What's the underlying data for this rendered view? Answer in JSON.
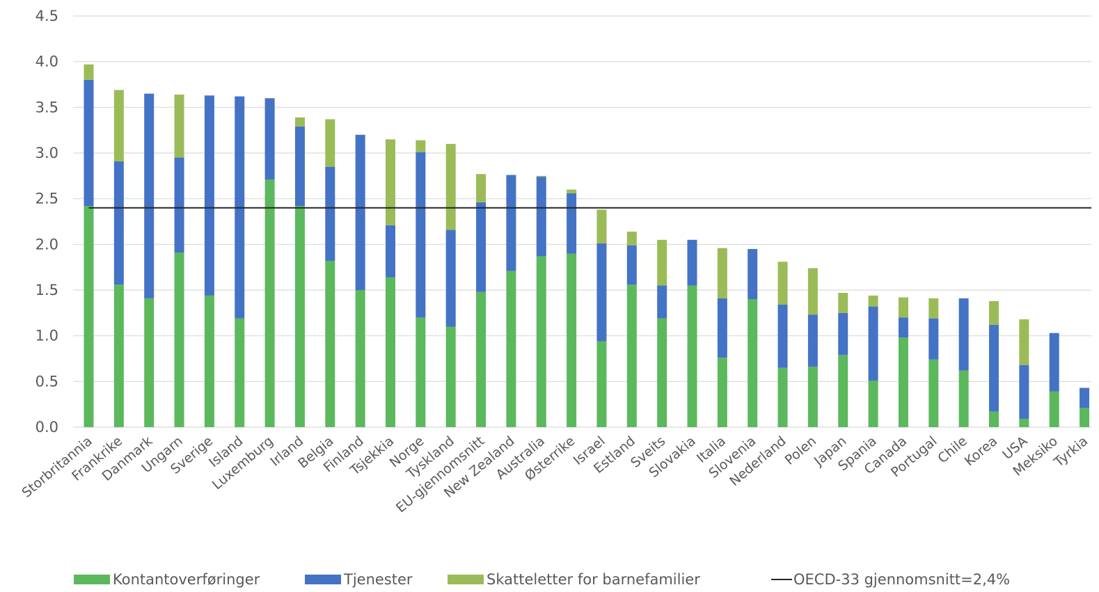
{
  "chart_data": {
    "type": "bar",
    "stacked": true,
    "title": "",
    "xlabel": "",
    "ylabel": "",
    "ylim": [
      0,
      4.5
    ],
    "yticks": [
      "0.0",
      "0.5",
      "1.0",
      "1.5",
      "2.0",
      "2.5",
      "3.0",
      "3.5",
      "4.0",
      "4.5"
    ],
    "grid": true,
    "legend_position": "bottom",
    "categories": [
      "Storbritannia",
      "Frankrike",
      "Danmark",
      "Ungarn",
      "Sverige",
      "Island",
      "Luxemburg",
      "Irland",
      "Belgia",
      "Finland",
      "Tsjekkia",
      "Norge",
      "Tyskland",
      "EU-gjennomsnitt",
      "New Zealand",
      "Australia",
      "Østerrike",
      "Israel",
      "Estland",
      "Sveits",
      "Slovakia",
      "Italia",
      "Slovenia",
      "Nederland",
      "Polen",
      "Japan",
      "Spania",
      "Canada",
      "Portugal",
      "Chile",
      "Korea",
      "USA",
      "Meksiko",
      "Tyrkia"
    ],
    "series": [
      {
        "name": "Kontantoverføringer",
        "color": "#5cb85c",
        "values": [
          2.42,
          1.56,
          1.41,
          1.91,
          1.44,
          1.19,
          2.71,
          2.42,
          1.82,
          1.5,
          1.64,
          1.2,
          1.1,
          1.48,
          1.71,
          1.87,
          1.9,
          0.94,
          1.56,
          1.19,
          1.55,
          0.76,
          1.4,
          0.65,
          0.66,
          0.79,
          0.51,
          0.98,
          0.74,
          0.62,
          0.17,
          0.09,
          0.39,
          0.21
        ]
      },
      {
        "name": "Tjenester",
        "color": "#4472c4",
        "values": [
          1.38,
          1.35,
          2.24,
          1.04,
          2.19,
          2.43,
          0.89,
          0.87,
          1.03,
          1.7,
          0.57,
          1.81,
          1.06,
          0.98,
          1.05,
          0.87,
          0.66,
          1.07,
          0.43,
          0.36,
          0.5,
          0.65,
          0.55,
          0.69,
          0.57,
          0.46,
          0.81,
          0.22,
          0.45,
          0.79,
          0.95,
          0.59,
          0.64,
          0.22
        ]
      },
      {
        "name": "Skatteletter for barnefamilier",
        "color": "#9bbb59",
        "values": [
          0.17,
          0.78,
          0.0,
          0.69,
          0.0,
          0.0,
          0.0,
          0.1,
          0.52,
          0.0,
          0.94,
          0.13,
          0.94,
          0.31,
          0.0,
          0.01,
          0.04,
          0.37,
          0.15,
          0.5,
          0.0,
          0.55,
          0.0,
          0.47,
          0.51,
          0.22,
          0.12,
          0.22,
          0.22,
          0.0,
          0.26,
          0.5,
          0.0,
          0.0
        ]
      }
    ],
    "reference_line": {
      "name": "OECD-33 gjennomsnitt=2,4%",
      "value": 2.4,
      "color": "#262626"
    }
  }
}
